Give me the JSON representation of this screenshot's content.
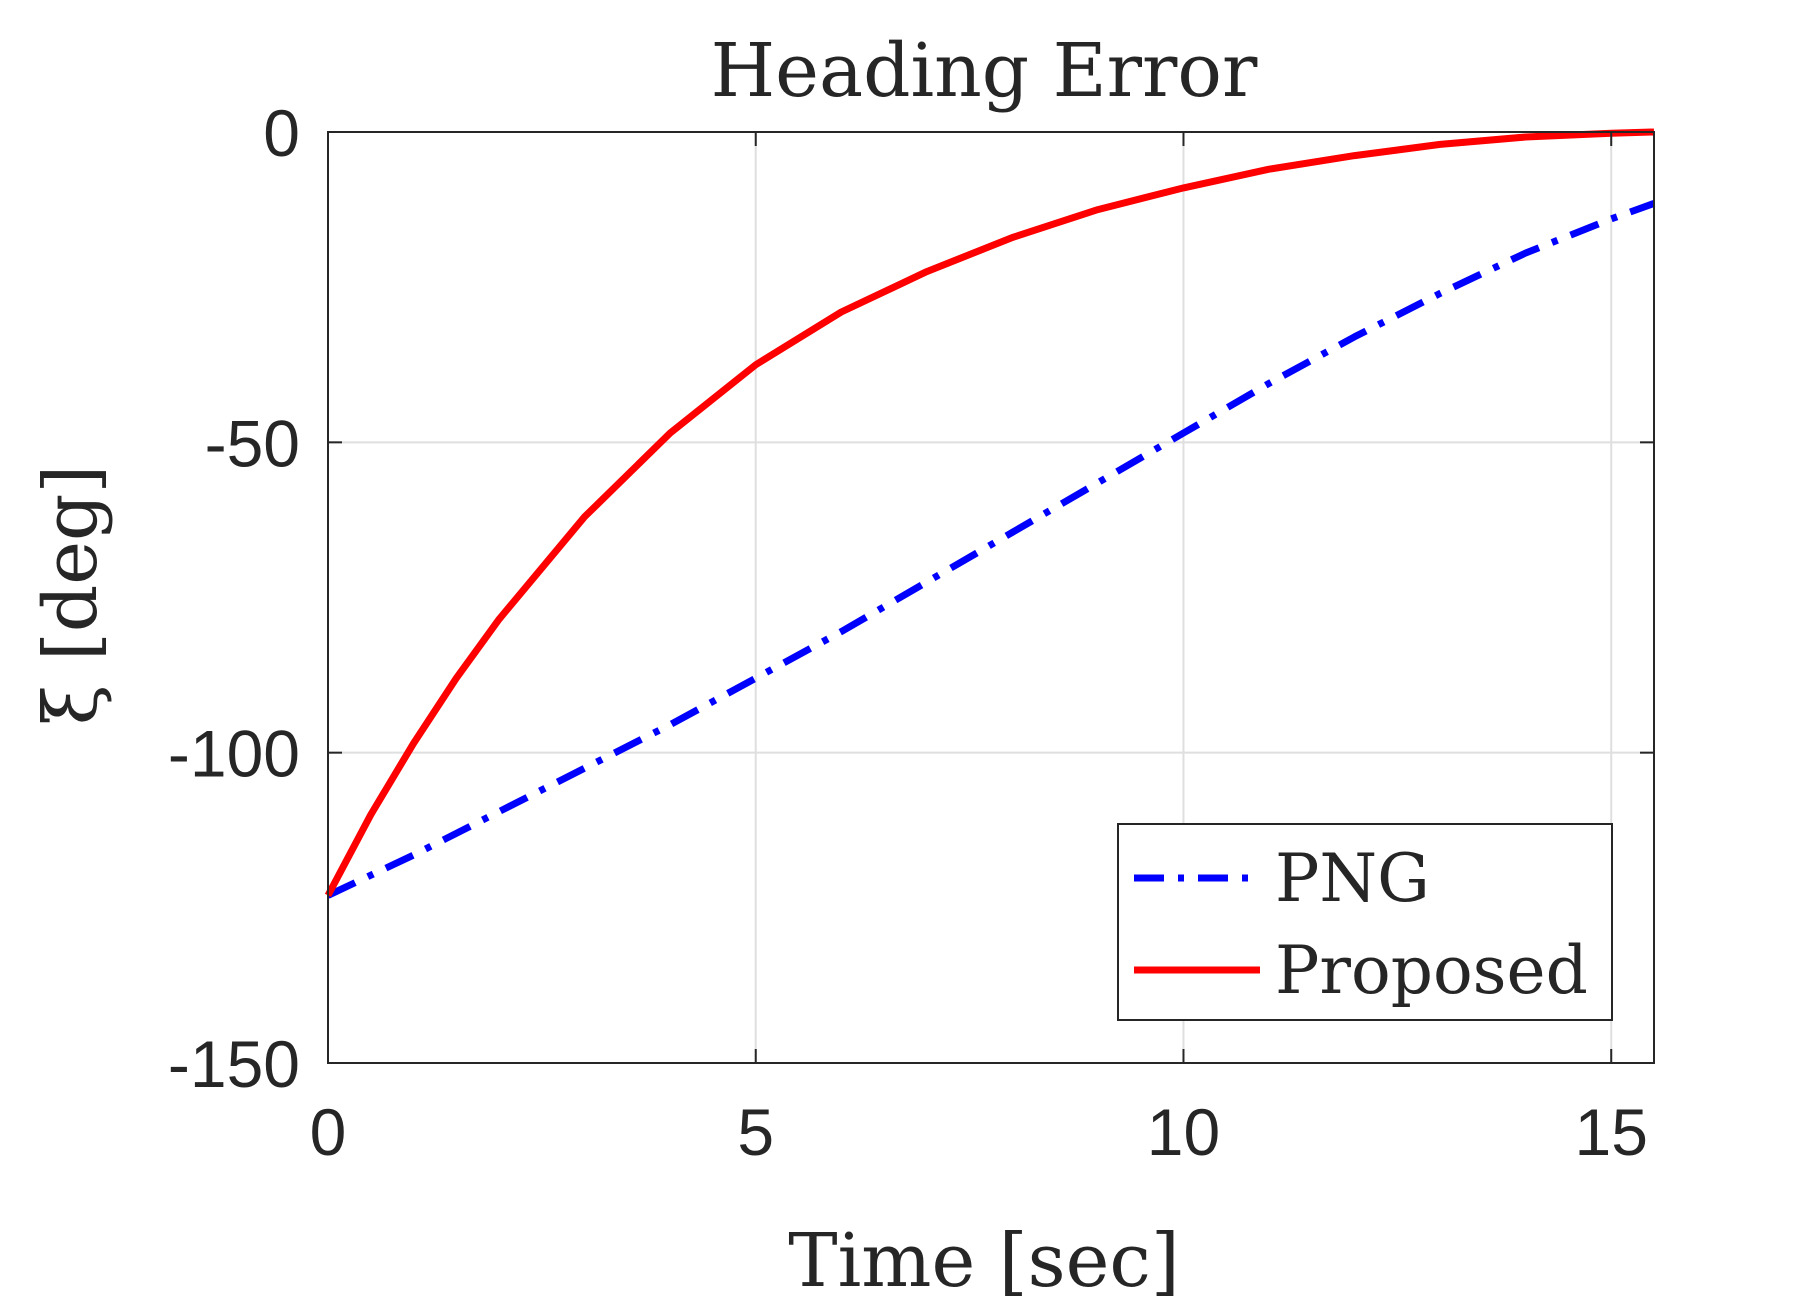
{
  "chart_data": {
    "type": "line",
    "title": "Heading Error",
    "xlabel": "Time [sec]",
    "ylabel": "ξ [deg]",
    "xlim": [
      0,
      15.5
    ],
    "ylim": [
      -150,
      0
    ],
    "xticks": [
      0,
      5,
      10,
      15
    ],
    "xtick_labels": [
      "0",
      "5",
      "10",
      "15"
    ],
    "yticks": [
      0,
      -50,
      -100,
      -150
    ],
    "ytick_labels": [
      "0",
      "-50",
      "-100",
      "-150"
    ],
    "grid": true,
    "legend_position": "bottom-right",
    "series": [
      {
        "name": "PNG",
        "color": "#0000ff",
        "style": "dashdot",
        "x": [
          0,
          1,
          2,
          3,
          4,
          5,
          6,
          7,
          8,
          9,
          10,
          11,
          12,
          13,
          14,
          15,
          15.5
        ],
        "y": [
          -123,
          -116.5,
          -109.5,
          -102.5,
          -95.5,
          -88,
          -80.5,
          -72.5,
          -64.5,
          -56.5,
          -48.5,
          -40.5,
          -33,
          -26,
          -19.5,
          -14,
          -11.5
        ]
      },
      {
        "name": "Proposed",
        "color": "#ff0000",
        "style": "solid",
        "x": [
          0,
          0.5,
          1,
          1.5,
          2,
          3,
          4,
          5,
          6,
          7,
          8,
          9,
          10,
          11,
          12,
          13,
          14,
          15,
          15.5
        ],
        "y": [
          -123,
          -110,
          -98.5,
          -88,
          -78.5,
          -62,
          -48.5,
          -37.5,
          -29,
          -22.5,
          -17,
          -12.5,
          -9,
          -6,
          -3.8,
          -2,
          -0.8,
          -0.2,
          0
        ]
      }
    ]
  }
}
